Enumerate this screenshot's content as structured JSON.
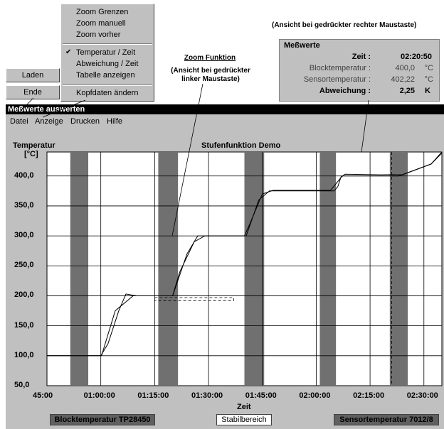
{
  "context_menu": {
    "items": [
      {
        "label": "Zoom Grenzen",
        "checked": false
      },
      {
        "label": "Zoom manuell",
        "checked": false
      },
      {
        "label": "Zoom vorher",
        "checked": false
      },
      {
        "label": "Temperatur / Zeit",
        "checked": true
      },
      {
        "label": "Abweichung / Zeit",
        "checked": false
      },
      {
        "label": "Tabelle anzeigen",
        "checked": false
      },
      {
        "label": "Kopfdaten ändern",
        "checked": false
      }
    ]
  },
  "file_menu": {
    "items": [
      {
        "label": "Laden"
      },
      {
        "label": "Ende"
      }
    ]
  },
  "annotations": {
    "right_click": "(Ansicht bei gedrückter rechter Maustaste)",
    "zoom_title": "Zoom Funktion",
    "zoom_sub1": "(Ansicht bei gedrückter",
    "zoom_sub2": "linker Maustaste)"
  },
  "messwerte": {
    "title": "Meßwerte",
    "rows": [
      {
        "label": "Zeit :",
        "value": "02:20:50",
        "unit": "",
        "bold": true
      },
      {
        "label": "Blocktemperatur :",
        "value": "400,0",
        "unit": "°C",
        "bold": false
      },
      {
        "label": "Sensortemperatur :",
        "value": "402,22",
        "unit": "°C",
        "bold": false
      },
      {
        "label": "Abweichung :",
        "value": "2,25",
        "unit": "K",
        "bold": true
      }
    ]
  },
  "window": {
    "title": "Meßwerte auswerten",
    "menu": [
      "Datei",
      "Anzeige",
      "Drucken",
      "Hilfe"
    ]
  },
  "status": {
    "left": "Blocktemperatur TP28450",
    "center": "Stabilbereich",
    "right": "Sensortemperatur 7012/8"
  },
  "chart_data": {
    "type": "line",
    "title": "Stufenfunktion Demo",
    "ylabel": "Temperatur",
    "yunit": "[°C]",
    "xlabel": "Zeit",
    "x_ticks": [
      "45:00",
      "01:00:00",
      "01:15:00",
      "01:30:00",
      "01:45:00",
      "02:00:00",
      "02:15:00",
      "02:30:00"
    ],
    "y_ticks": [
      "50,0",
      "100,0",
      "150,0",
      "200,0",
      "250,0",
      "300,0",
      "350,0",
      "400,0"
    ],
    "xlim_min": [
      45,
      155
    ],
    "ylim": [
      50,
      440
    ],
    "stable_bands_min": [
      [
        51.5,
        56.5
      ],
      [
        76,
        81.5
      ],
      [
        100,
        105.5
      ],
      [
        121,
        125.5
      ],
      [
        140.5,
        145.5
      ]
    ],
    "zoom_rect_min": [
      [
        75,
        197
      ],
      [
        97,
        192
      ]
    ],
    "cursor_min": 141,
    "colors": {
      "band": "#707070",
      "grid": "#000000",
      "window": "#c0c0c0",
      "titlebar": "#000000"
    },
    "series": [
      {
        "name": "Blocktemperatur",
        "x": [
          45,
          60,
          60.2,
          64,
          69,
          74,
          80,
          84,
          87,
          99,
          100.5,
          104,
          107,
          121,
          125,
          126,
          127,
          138,
          139,
          143,
          152,
          155
        ],
        "y": [
          100,
          100,
          100,
          175,
          200,
          200,
          200,
          270,
          300,
          300,
          300,
          360,
          375,
          375,
          375,
          382,
          400,
          400,
          400,
          400,
          420,
          440
        ]
      },
      {
        "name": "Sensortemperatur",
        "x": [
          45,
          60,
          62,
          65,
          67,
          70,
          80,
          81,
          82,
          86,
          89,
          100,
          101.5,
          105,
          108,
          121,
          124,
          127,
          128,
          138,
          141,
          144,
          152,
          155
        ],
        "y": [
          100,
          100,
          120,
          175,
          203,
          200,
          200,
          220,
          240,
          290,
          300,
          300,
          320,
          370,
          376,
          376,
          376,
          398,
          403,
          402,
          402.2,
          402,
          420,
          438
        ]
      }
    ]
  }
}
